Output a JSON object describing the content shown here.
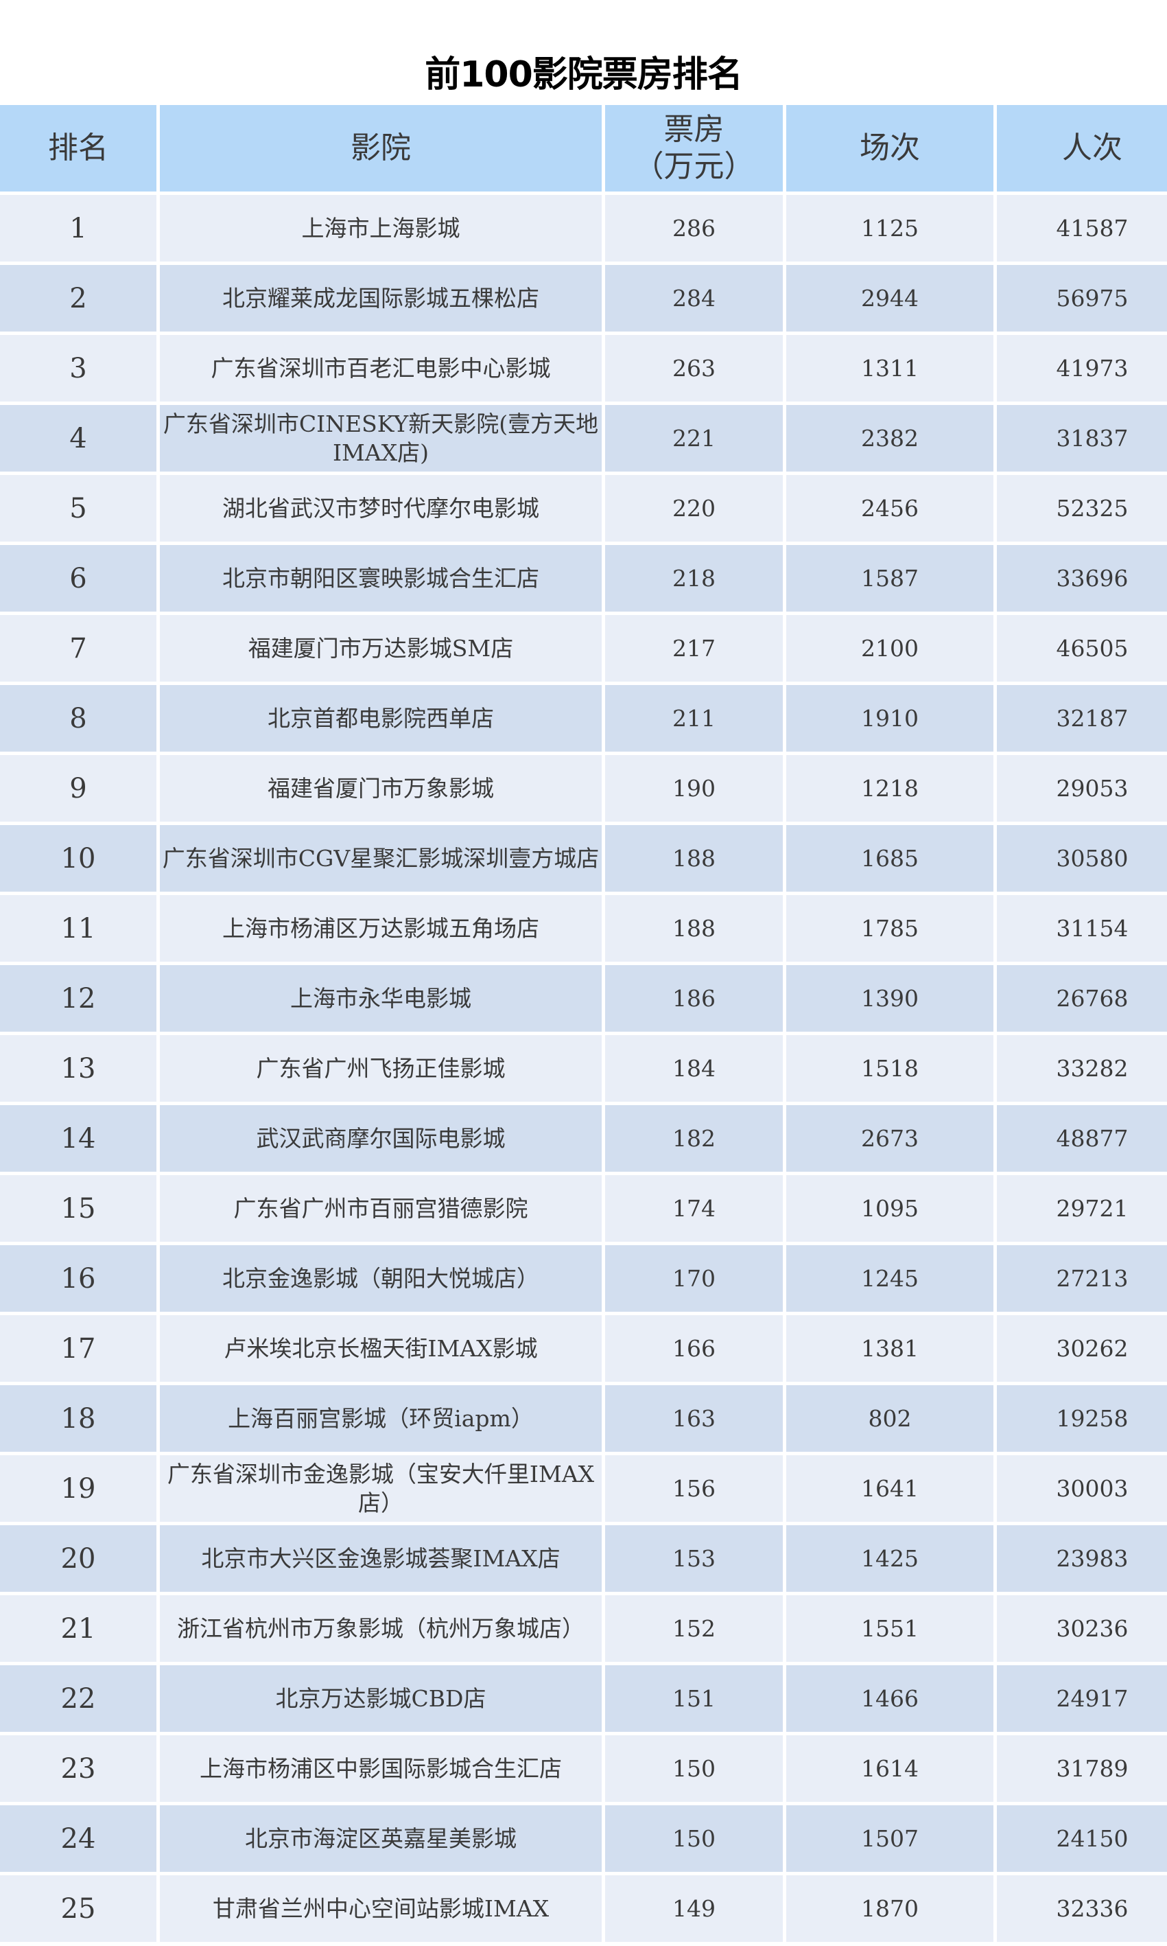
{
  "title": "前100影院票房排名",
  "columns": {
    "rank": "排名",
    "cinema": "影院",
    "box_office": "票房",
    "box_office_unit": "（万元）",
    "shows": "场次",
    "admissions": "人次"
  },
  "colors": {
    "header_bg": "#b5d8f8",
    "row_odd_bg": "#e9eef7",
    "row_even_bg": "#d2deef"
  },
  "rows": [
    {
      "rank": "1",
      "cinema": "上海市上海影城",
      "box_office": "286",
      "shows": "1125",
      "admissions": "41587"
    },
    {
      "rank": "2",
      "cinema": "北京耀莱成龙国际影城五棵松店",
      "box_office": "284",
      "shows": "2944",
      "admissions": "56975"
    },
    {
      "rank": "3",
      "cinema": "广东省深圳市百老汇电影中心影城",
      "box_office": "263",
      "shows": "1311",
      "admissions": "41973"
    },
    {
      "rank": "4",
      "cinema": "广东省深圳市CINESKY新天影院(壹方天地IMAX店)",
      "box_office": "221",
      "shows": "2382",
      "admissions": "31837"
    },
    {
      "rank": "5",
      "cinema": "湖北省武汉市梦时代摩尔电影城",
      "box_office": "220",
      "shows": "2456",
      "admissions": "52325"
    },
    {
      "rank": "6",
      "cinema": "北京市朝阳区寰映影城合生汇店",
      "box_office": "218",
      "shows": "1587",
      "admissions": "33696"
    },
    {
      "rank": "7",
      "cinema": "福建厦门市万达影城SM店",
      "box_office": "217",
      "shows": "2100",
      "admissions": "46505"
    },
    {
      "rank": "8",
      "cinema": "北京首都电影院西单店",
      "box_office": "211",
      "shows": "1910",
      "admissions": "32187"
    },
    {
      "rank": "9",
      "cinema": "福建省厦门市万象影城",
      "box_office": "190",
      "shows": "1218",
      "admissions": "29053"
    },
    {
      "rank": "10",
      "cinema": "广东省深圳市CGV星聚汇影城深圳壹方城店",
      "box_office": "188",
      "shows": "1685",
      "admissions": "30580"
    },
    {
      "rank": "11",
      "cinema": "上海市杨浦区万达影城五角场店",
      "box_office": "188",
      "shows": "1785",
      "admissions": "31154"
    },
    {
      "rank": "12",
      "cinema": "上海市永华电影城",
      "box_office": "186",
      "shows": "1390",
      "admissions": "26768"
    },
    {
      "rank": "13",
      "cinema": "广东省广州飞扬正佳影城",
      "box_office": "184",
      "shows": "1518",
      "admissions": "33282"
    },
    {
      "rank": "14",
      "cinema": "武汉武商摩尔国际电影城",
      "box_office": "182",
      "shows": "2673",
      "admissions": "48877"
    },
    {
      "rank": "15",
      "cinema": "广东省广州市百丽宫猎德影院",
      "box_office": "174",
      "shows": "1095",
      "admissions": "29721"
    },
    {
      "rank": "16",
      "cinema": "北京金逸影城（朝阳大悦城店）",
      "box_office": "170",
      "shows": "1245",
      "admissions": "27213"
    },
    {
      "rank": "17",
      "cinema": "卢米埃北京长楹天街IMAX影城",
      "box_office": "166",
      "shows": "1381",
      "admissions": "30262"
    },
    {
      "rank": "18",
      "cinema": "上海百丽宫影城（环贸iapm）",
      "box_office": "163",
      "shows": "802",
      "admissions": "19258"
    },
    {
      "rank": "19",
      "cinema": "广东省深圳市金逸影城（宝安大仟里IMAX店）",
      "box_office": "156",
      "shows": "1641",
      "admissions": "30003"
    },
    {
      "rank": "20",
      "cinema": "北京市大兴区金逸影城荟聚IMAX店",
      "box_office": "153",
      "shows": "1425",
      "admissions": "23983"
    },
    {
      "rank": "21",
      "cinema": "浙江省杭州市万象影城（杭州万象城店）",
      "box_office": "152",
      "shows": "1551",
      "admissions": "30236"
    },
    {
      "rank": "22",
      "cinema": "北京万达影城CBD店",
      "box_office": "151",
      "shows": "1466",
      "admissions": "24917"
    },
    {
      "rank": "23",
      "cinema": "上海市杨浦区中影国际影城合生汇店",
      "box_office": "150",
      "shows": "1614",
      "admissions": "31789"
    },
    {
      "rank": "24",
      "cinema": "北京市海淀区英嘉星美影城",
      "box_office": "150",
      "shows": "1507",
      "admissions": "24150"
    },
    {
      "rank": "25",
      "cinema": "甘肃省兰州中心空间站影城IMAX",
      "box_office": "149",
      "shows": "1870",
      "admissions": "32336"
    }
  ]
}
